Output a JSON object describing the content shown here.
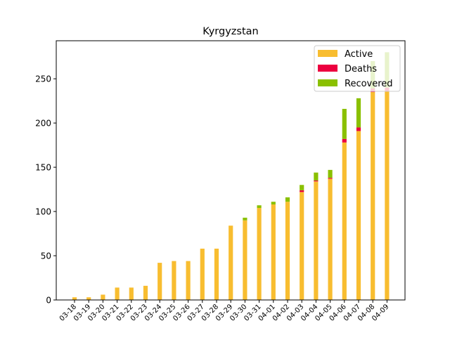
{
  "chart_data": {
    "type": "bar",
    "stacked": true,
    "title": "Kyrgyzstan",
    "xlabel": "",
    "ylabel": "",
    "ylim": [
      0,
      293
    ],
    "yticks": [
      0,
      50,
      100,
      150,
      200,
      250
    ],
    "categories": [
      "03-18",
      "03-19",
      "03-20",
      "03-21",
      "03-22",
      "03-23",
      "03-24",
      "03-25",
      "03-26",
      "03-27",
      "03-28",
      "03-29",
      "03-30",
      "03-31",
      "04-01",
      "04-02",
      "04-03",
      "04-04",
      "04-05",
      "04-06",
      "04-07",
      "04-08",
      "04-09"
    ],
    "series": [
      {
        "name": "Active",
        "color": "#f8bd30",
        "values": [
          3,
          3,
          6,
          14,
          14,
          16,
          42,
          44,
          44,
          58,
          58,
          84,
          90,
          104,
          108,
          111,
          122,
          134,
          137,
          178,
          191,
          235,
          236
        ]
      },
      {
        "name": "Deaths",
        "color": "#ec003f",
        "values": [
          0,
          0,
          0,
          0,
          0,
          0,
          0,
          0,
          0,
          0,
          0,
          0,
          0,
          0,
          0,
          0,
          2,
          1,
          1,
          4,
          4,
          4,
          4
        ]
      },
      {
        "name": "Recovered",
        "color": "#8ac000",
        "values": [
          0,
          0,
          0,
          0,
          0,
          0,
          0,
          0,
          0,
          0,
          0,
          0,
          3,
          3,
          3,
          5,
          6,
          9,
          9,
          34,
          33,
          31,
          40
        ]
      }
    ],
    "legend": {
      "placement": "top-right"
    },
    "grid": false
  }
}
